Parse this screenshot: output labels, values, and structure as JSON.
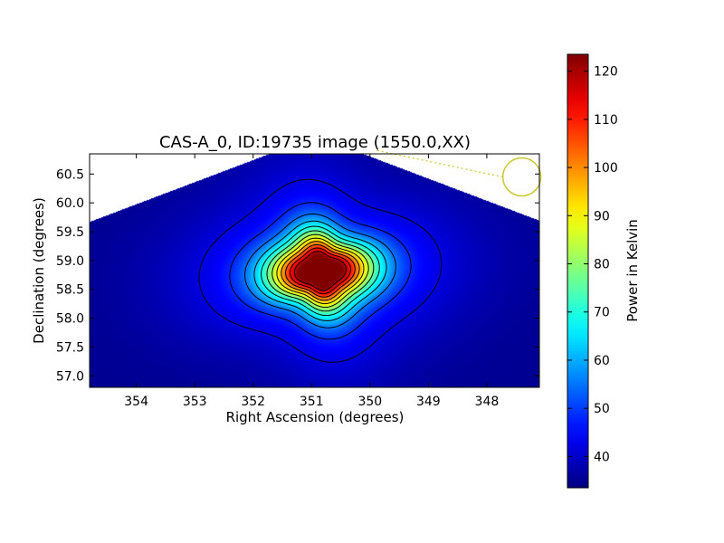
{
  "chart_data": {
    "type": "heatmap",
    "title": "CAS-A_0, ID:19735 image (1550.0,XX)",
    "xlabel": "Right Ascension (degrees)",
    "ylabel": "Declination (degrees)",
    "xlim": [
      354.8,
      347.1
    ],
    "ylim": [
      56.8,
      60.85
    ],
    "x_ticks": [
      354,
      353,
      352,
      351,
      350,
      349,
      348
    ],
    "y_ticks": [
      57.0,
      57.5,
      58.0,
      58.5,
      59.0,
      59.5,
      60.0,
      60.5
    ],
    "y_tick_labels": [
      "57.0",
      "57.5",
      "58.0",
      "58.5",
      "59.0",
      "59.5",
      "60.0",
      "60.5"
    ],
    "colormap": "jet",
    "colorbar": {
      "label": "Power in Kelvin",
      "range": [
        33.5,
        123.5
      ],
      "ticks": [
        40,
        50,
        60,
        70,
        80,
        90,
        100,
        110,
        120
      ]
    },
    "source_peak": {
      "ra": 350.85,
      "dec": 58.82,
      "value": 123.5
    },
    "background_level": 35,
    "contour_levels": [
      42,
      48,
      55,
      62,
      69,
      76,
      83,
      90,
      97,
      104,
      111,
      118
    ],
    "beam_marker": {
      "ra": 347.4,
      "dec": 60.45,
      "color": "#c8c832"
    },
    "colors": {
      "frame": "#000000",
      "contour": "#000000",
      "beam": "#c8c832"
    }
  }
}
